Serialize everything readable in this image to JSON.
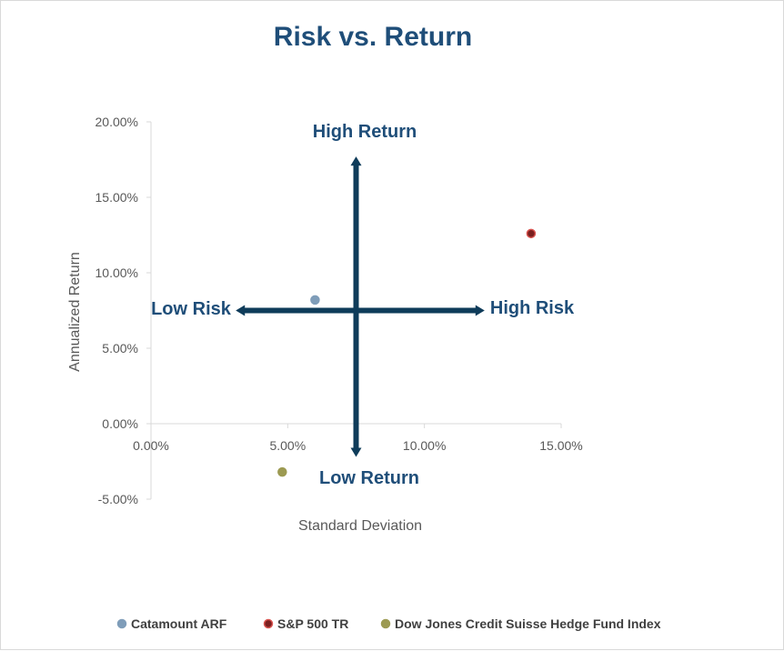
{
  "chart_data": {
    "type": "scatter",
    "title": "Risk vs. Return",
    "xlabel": "Standard Deviation",
    "ylabel": "Annualized Return",
    "xlim": [
      0,
      0.15
    ],
    "ylim": [
      -0.05,
      0.2
    ],
    "x_ticks": [
      0,
      0.05,
      0.1,
      0.15
    ],
    "x_tick_labels": [
      "0.00%",
      "5.00%",
      "10.00%",
      "15.00%"
    ],
    "y_ticks": [
      -0.05,
      0,
      0.05,
      0.1,
      0.15,
      0.2
    ],
    "y_tick_labels": [
      "-5.00%",
      "0.00%",
      "5.00%",
      "10.00%",
      "15.00%",
      "20.00%"
    ],
    "grid": false,
    "legend_position": "bottom",
    "series": [
      {
        "name": "Catamount ARF",
        "color": "#7f9db9",
        "stroke": "#7f9db9",
        "x": [
          0.06
        ],
        "y": [
          0.082
        ]
      },
      {
        "name": "S&P 500 TR",
        "color": "#7b1f1f",
        "stroke": "#d9534f",
        "x": [
          0.139
        ],
        "y": [
          0.126
        ]
      },
      {
        "name": "Dow Jones Credit Suisse Hedge Fund Index",
        "color": "#9c9a52",
        "stroke": "#9c9a52",
        "x": [
          0.048
        ],
        "y": [
          -0.032
        ]
      }
    ],
    "annotations": {
      "high_return": "High Return",
      "low_return": "Low Return",
      "low_risk": "Low Risk",
      "high_risk": "High Risk"
    },
    "crosshair": {
      "color": "#0f3c5a",
      "vertical_x": 0.075,
      "vertical_y_range": [
        -0.022,
        0.177
      ],
      "horizontal_y": 0.075,
      "horizontal_x_range": [
        0.031,
        0.122
      ]
    }
  }
}
